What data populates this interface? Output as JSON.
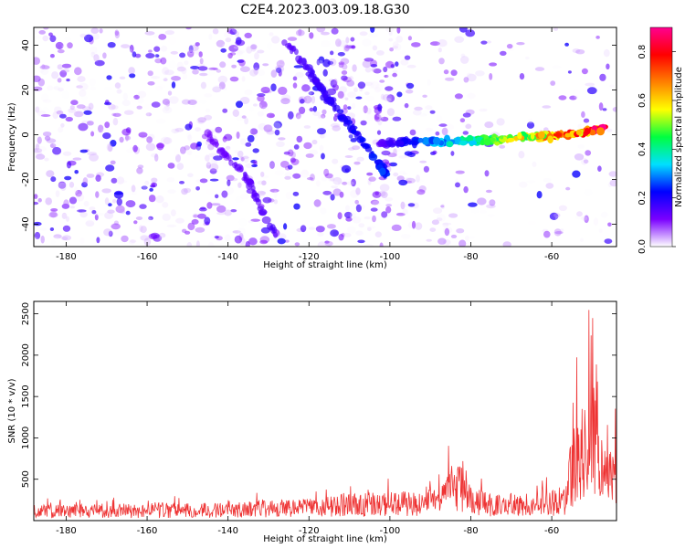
{
  "figure": {
    "title": "C2E4.2023.003.09.18.G30"
  },
  "chart_data": [
    {
      "type": "heatmap",
      "title": "C2E4.2023.003.09.18.G30",
      "xlabel": "Height of straight line (km)",
      "ylabel": "Frequency (Hz)",
      "xlim": [
        -188,
        -44
      ],
      "ylim": [
        -50,
        48
      ],
      "x_ticks": [
        -180,
        -160,
        -140,
        -120,
        -100,
        -80,
        -60
      ],
      "y_ticks": [
        -40,
        -20,
        0,
        20,
        40
      ],
      "colorbar": {
        "label": "Normalized spectral amplitude",
        "range": [
          0.0,
          0.9
        ],
        "ticks": [
          0.0,
          0.2,
          0.4,
          0.6,
          0.8
        ],
        "colors": [
          "#ffffff",
          "#7a00ff",
          "#0000ff",
          "#00e0ff",
          "#00ff40",
          "#ffff00",
          "#ff8000",
          "#ff0000",
          "#ff0090"
        ]
      },
      "features": [
        {
          "name": "descending trace",
          "points": [
            [
              -126,
              42
            ],
            [
              -120,
              29
            ],
            [
              -117,
              20
            ],
            [
              -113,
              11
            ],
            [
              -108,
              0
            ],
            [
              -103,
              -12
            ],
            [
              -101,
              -18
            ]
          ]
        },
        {
          "name": "secondary descending trace",
          "points": [
            [
              -145,
              0
            ],
            [
              -140,
              -10
            ],
            [
              -135,
              -20
            ],
            [
              -132,
              -33
            ],
            [
              -128,
              -45
            ]
          ]
        },
        {
          "name": "horizontal trace",
          "points": [
            [
              -103,
              -4
            ],
            [
              -95,
              -3
            ],
            [
              -85,
              -3
            ],
            [
              -75,
              -2
            ],
            [
              -65,
              -1
            ],
            [
              -55,
              0
            ],
            [
              -47,
              3
            ]
          ]
        }
      ],
      "grid": false
    },
    {
      "type": "line",
      "xlabel": "Height of straight line (km)",
      "ylabel": "SNR (10 * v/v)",
      "xlim": [
        -188,
        -44
      ],
      "ylim": [
        0,
        2650
      ],
      "x_ticks": [
        -180,
        -160,
        -140,
        -120,
        -100,
        -80,
        -60
      ],
      "y_ticks": [
        500,
        1000,
        1500,
        2000,
        2500
      ],
      "series": [
        {
          "color": "#ee3333",
          "x": [
            -188,
            -180,
            -170,
            -160,
            -150,
            -140,
            -130,
            -120,
            -112,
            -105,
            -98,
            -92,
            -88,
            -85,
            -83,
            -80,
            -75,
            -70,
            -65,
            -60,
            -57,
            -55,
            -54,
            -53,
            -52,
            -51,
            -50,
            -49,
            -48,
            -47,
            -46,
            -45,
            -44
          ],
          "y": [
            180,
            190,
            190,
            200,
            200,
            210,
            230,
            250,
            300,
            330,
            350,
            320,
            420,
            650,
            700,
            400,
            300,
            320,
            330,
            360,
            400,
            1000,
            1500,
            1400,
            1300,
            2200,
            2400,
            2000,
            700,
            900,
            1100,
            800,
            1000
          ]
        }
      ],
      "grid": false
    }
  ]
}
